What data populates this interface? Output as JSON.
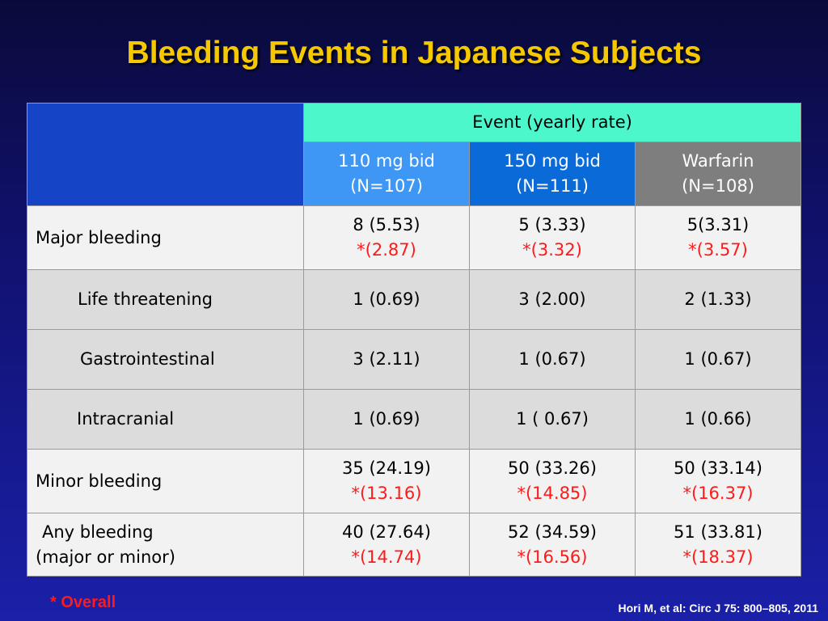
{
  "title": "Bleeding Events in Japanese Subjects",
  "table": {
    "group_header": "Event (yearly rate)",
    "columns": [
      {
        "line1": "110 mg bid",
        "line2": "(N=107)"
      },
      {
        "line1": "150 mg bid",
        "line2": "(N=111)"
      },
      {
        "line1": "Warfarin",
        "line2": "(N=108)"
      }
    ],
    "rows": [
      {
        "label": "Major bleeding",
        "cells": [
          {
            "value": "8 (5.53)",
            "overall": "*(2.87)"
          },
          {
            "value": "5 (3.33)",
            "overall": "*(3.32)"
          },
          {
            "value": "5(3.31)",
            "overall": "*(3.57)"
          }
        ]
      },
      {
        "label": "Life threatening",
        "cells": [
          {
            "value": "1 (0.69)"
          },
          {
            "value": "3 (2.00)"
          },
          {
            "value": "2 (1.33)"
          }
        ]
      },
      {
        "label": "Gastrointestinal",
        "cells": [
          {
            "value": "3 (2.11)"
          },
          {
            "value": "1 (0.67)"
          },
          {
            "value": "1 (0.67)"
          }
        ]
      },
      {
        "label": "Intracranial",
        "cells": [
          {
            "value": "1 (0.69)"
          },
          {
            "value": "1 ( 0.67)"
          },
          {
            "value": "1 (0.66)"
          }
        ]
      },
      {
        "label": "Minor bleeding",
        "cells": [
          {
            "value": "35 (24.19)",
            "overall": "*(13.16)"
          },
          {
            "value": "50 (33.26)",
            "overall": "*(14.85)"
          },
          {
            "value": "50 (33.14)",
            "overall": "*(16.37)"
          }
        ]
      },
      {
        "label_line1": "Any bleeding",
        "label_line2": "(major or minor)",
        "cells": [
          {
            "value": "40 (27.64)",
            "overall": "*(14.74)"
          },
          {
            "value": "52 (34.59)",
            "overall": "*(16.56)"
          },
          {
            "value": "51 (33.81)",
            "overall": "*(18.37)"
          }
        ]
      }
    ]
  },
  "footnote": "* Overall",
  "citation": "Hori M, et al: Circ J 75: 800–805, 2011",
  "colors": {
    "title": "#f5c800",
    "event_header_bg": "#4cf7cc",
    "col_110_bg": "#3e97f5",
    "col_150_bg": "#0a6ad8",
    "col_warfarin_bg": "#7e7e7e",
    "overall_text": "#ff1a1a",
    "corner_bg": "#1544c6"
  }
}
